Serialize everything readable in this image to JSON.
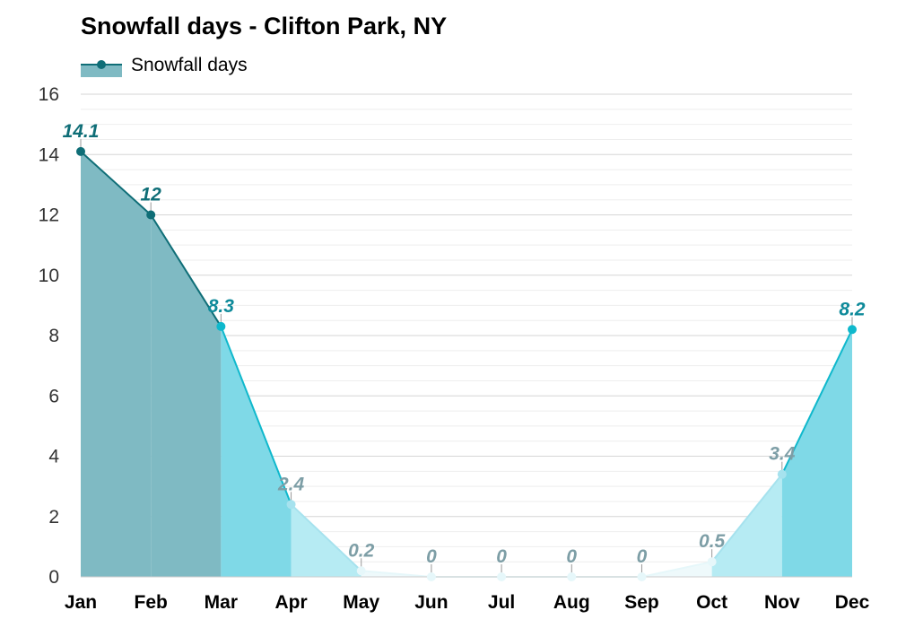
{
  "chart_data": {
    "type": "area",
    "title": "Snowfall days - Clifton Park, NY",
    "categories": [
      "Jan",
      "Feb",
      "Mar",
      "Apr",
      "May",
      "Jun",
      "Jul",
      "Aug",
      "Sep",
      "Oct",
      "Nov",
      "Dec"
    ],
    "series": [
      {
        "name": "Snowfall days",
        "values": [
          14.1,
          12,
          8.3,
          2.4,
          0.2,
          0,
          0,
          0,
          0,
          0.5,
          3.4,
          8.2
        ]
      }
    ],
    "value_labels": [
      "14.1",
      "12",
      "8.3",
      "2.4",
      "0.2",
      "0",
      "0",
      "0",
      "0",
      "0.5",
      "3.4",
      "8.2"
    ],
    "ylim": [
      0,
      16
    ],
    "yticks": [
      "0",
      "2",
      "4",
      "6",
      "8",
      "10",
      "12",
      "14",
      "16"
    ],
    "ytick_values": [
      0,
      2,
      4,
      6,
      8,
      10,
      12,
      14,
      16
    ],
    "grid": true,
    "legend_position": "top-left",
    "colors": {
      "dark": "#0f6e77",
      "mid": "#0fb8cc",
      "light": "#a6e2ee",
      "pale": "#d2f1f7",
      "faint": "#e6f7fa",
      "label_gray": "#7d9ea6",
      "fill_dark": "#7fbac3",
      "fill_mid": "#7fd9e7",
      "fill_light": "#b6ebf3",
      "fill_pale": "#d9f3f8",
      "fill_faint": "#eef9fb"
    }
  }
}
